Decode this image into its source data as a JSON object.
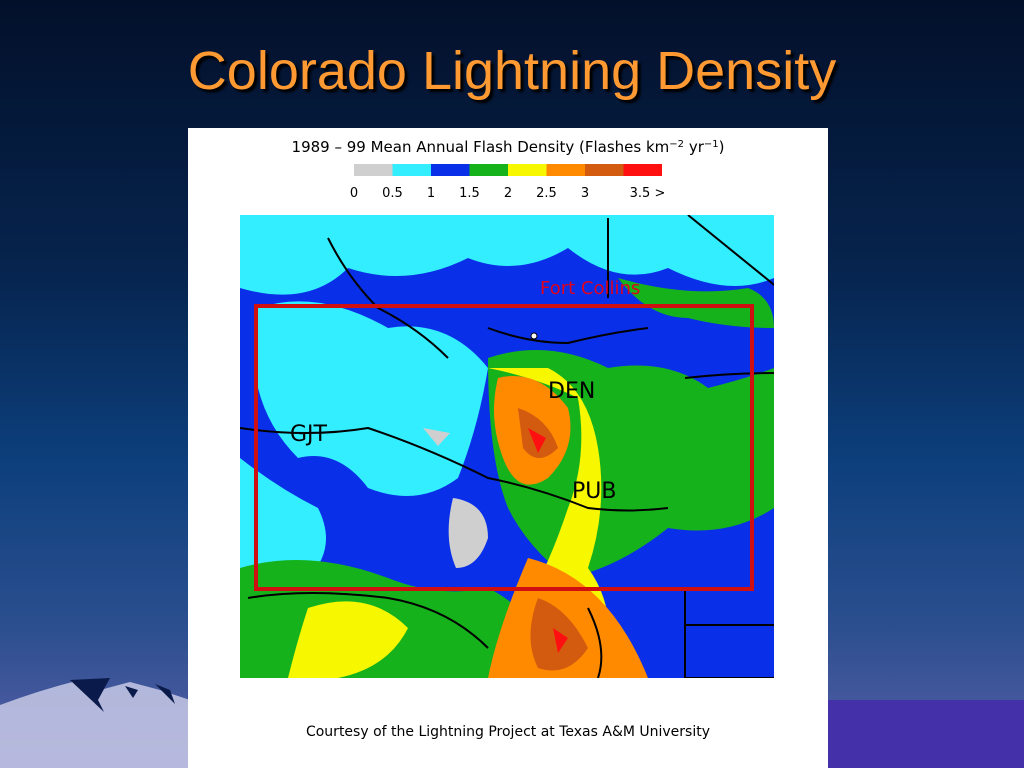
{
  "slide": {
    "title": "Colorado Lightning Density"
  },
  "map": {
    "title_parts": [
      "1989 – 99 Mean Annual Flash Density (Flashes km",
      "−2",
      " yr",
      "−1",
      ")"
    ],
    "legend": {
      "items": [
        {
          "label": "0",
          "color": "#cfcfcf"
        },
        {
          "label": "0.5",
          "color": "#33eeff"
        },
        {
          "label": "1",
          "color": "#0a2fe8"
        },
        {
          "label": "1.5",
          "color": "#15b21c"
        },
        {
          "label": "2",
          "color": "#f7f700"
        },
        {
          "label": "2.5",
          "color": "#ff8a00"
        },
        {
          "label": "3",
          "color": "#d25b10"
        },
        {
          "label": "3.5 >",
          "color": "#ff1010"
        }
      ]
    },
    "places": [
      "Fort Collins",
      "DEN",
      "GJT",
      "PUB"
    ],
    "credit": "Courtesy of the Lightning Project at Texas A&M University"
  }
}
